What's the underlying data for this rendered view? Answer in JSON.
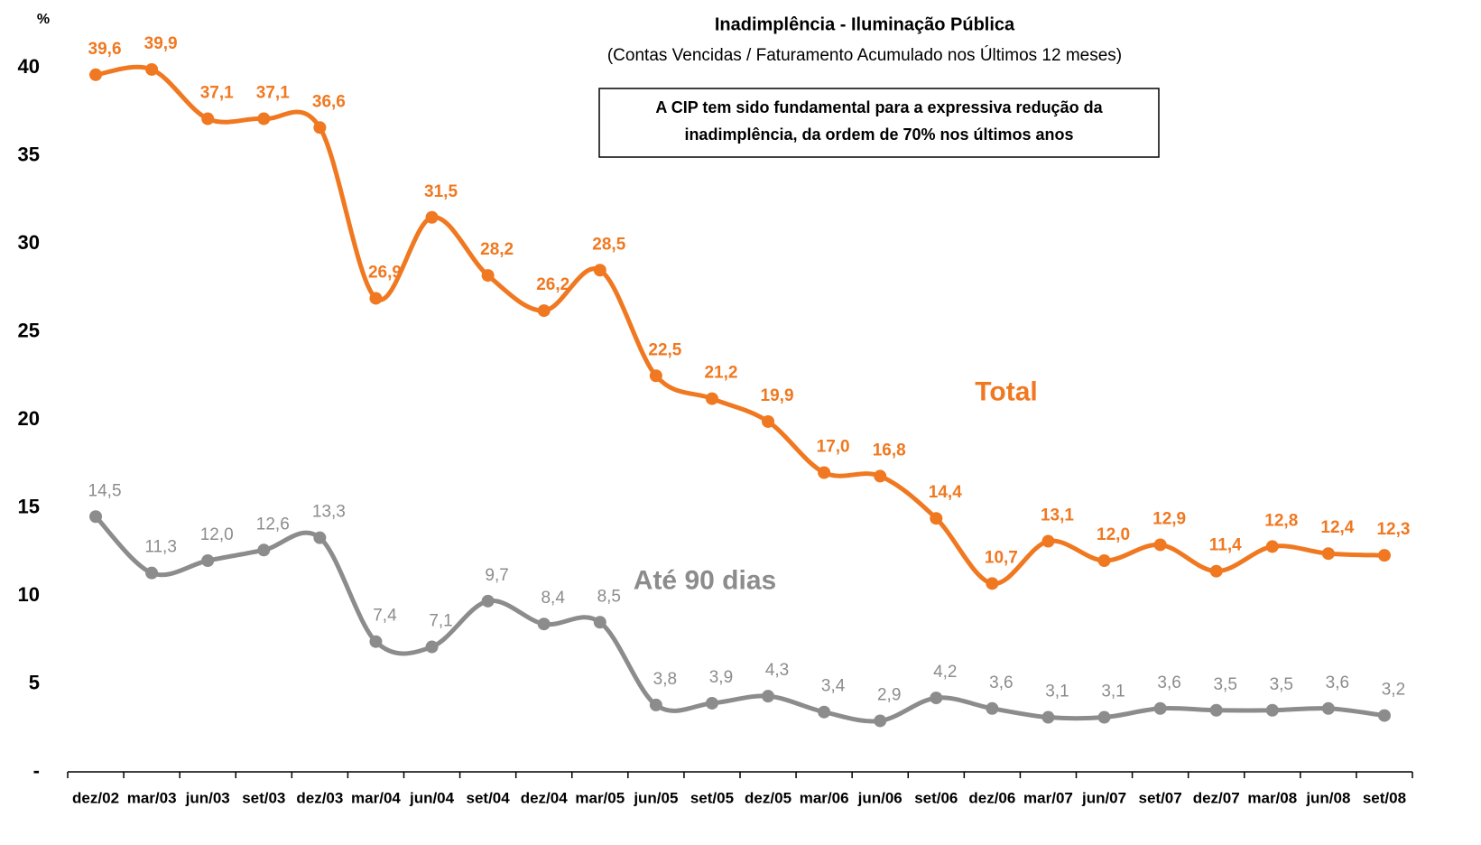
{
  "chart_data": {
    "type": "line",
    "title": "Inadimplência - Iluminação Pública",
    "subtitle": "(Contas Vencidas / Faturamento Acumulado nos Últimos 12 meses)",
    "annotation": [
      "A CIP tem sido fundamental para a expressiva redução da",
      "inadimplência, da ordem de 70% nos últimos anos"
    ],
    "y_label": "%",
    "categories": [
      "dez/02",
      "mar/03",
      "jun/03",
      "set/03",
      "dez/03",
      "mar/04",
      "jun/04",
      "set/04",
      "dez/04",
      "mar/05",
      "jun/05",
      "set/05",
      "dez/05",
      "mar/06",
      "jun/06",
      "set/06",
      "dez/06",
      "mar/07",
      "jun/07",
      "set/07",
      "dez/07",
      "mar/08",
      "jun/08",
      "set/08"
    ],
    "series": [
      {
        "name": "Total",
        "color": "#f07820",
        "values": [
          39.6,
          39.9,
          37.1,
          37.1,
          36.6,
          26.9,
          31.5,
          28.2,
          26.2,
          28.5,
          22.5,
          21.2,
          19.9,
          17.0,
          16.8,
          14.4,
          10.7,
          13.1,
          12.0,
          12.9,
          11.4,
          12.8,
          12.4,
          12.3
        ],
        "value_labels": [
          "39,6",
          "39,9",
          "37,1",
          "37,1",
          "36,6",
          "26,9",
          "31,5",
          "28,2",
          "26,2",
          "28,5",
          "22,5",
          "21,2",
          "19,9",
          "17,0",
          "16,8",
          "14,4",
          "10,7",
          "13,1",
          "12,0",
          "12,9",
          "11,4",
          "12,8",
          "12,4",
          "12,3"
        ]
      },
      {
        "name": "Até 90 dias",
        "color": "#8c8c8c",
        "values": [
          14.5,
          11.3,
          12.0,
          12.6,
          13.3,
          7.4,
          7.1,
          9.7,
          8.4,
          8.5,
          3.8,
          3.9,
          4.3,
          3.4,
          2.9,
          4.2,
          3.6,
          3.1,
          3.1,
          3.6,
          3.5,
          3.5,
          3.6,
          3.2
        ],
        "value_labels": [
          "14,5",
          "11,3",
          "12,0",
          "12,6",
          "13,3",
          "7,4",
          "7,1",
          "9,7",
          "8,4",
          "8,5",
          "3,8",
          "3,9",
          "4,3",
          "3,4",
          "2,9",
          "4,2",
          "3,6",
          "3,1",
          "3,1",
          "3,6",
          "3,5",
          "3,5",
          "3,6",
          "3,2"
        ]
      }
    ],
    "ylim": [
      0,
      42
    ],
    "yticks": [
      {
        "value": 0,
        "label": "-"
      },
      5,
      10,
      15,
      20,
      25,
      30,
      35,
      40
    ],
    "grid": false
  }
}
